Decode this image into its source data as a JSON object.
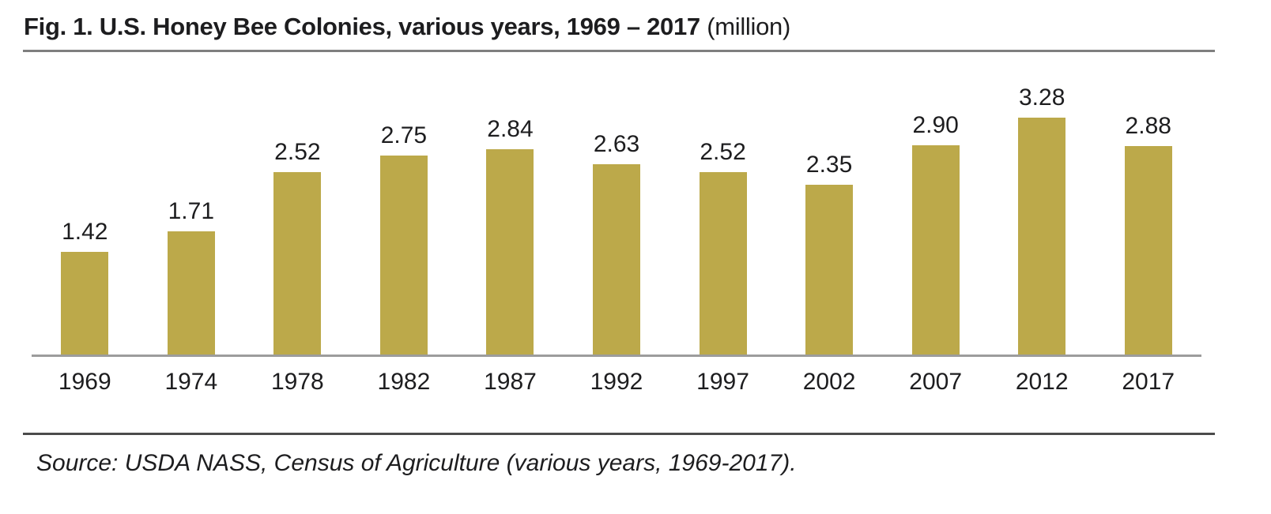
{
  "header": {
    "title_bold": "Fig. 1. U.S. Honey Bee Colonies, various years, 1969 – 2017",
    "title_unit": "(million)"
  },
  "chart_data": {
    "type": "bar",
    "title": "Fig. 1. U.S. Honey Bee Colonies, various years, 1969 – 2017 (million)",
    "categories": [
      "1969",
      "1974",
      "1978",
      "1982",
      "1987",
      "1992",
      "1997",
      "2002",
      "2007",
      "2012",
      "2017"
    ],
    "values": [
      1.42,
      1.71,
      2.52,
      2.75,
      2.84,
      2.63,
      2.52,
      2.35,
      2.9,
      3.28,
      2.88
    ],
    "value_labels": [
      "1.42",
      "1.71",
      "2.52",
      "2.75",
      "2.84",
      "2.63",
      "2.52",
      "2.35",
      "2.90",
      "3.28",
      "2.88"
    ],
    "unit": "million",
    "xlabel": "",
    "ylabel": "",
    "ylim": [
      0,
      3.5
    ],
    "grid": false,
    "legend": "none",
    "data_labels_position": "above bars",
    "bar_color": "#bca94a"
  },
  "footer": {
    "source": "Source: USDA NASS, Census of Agriculture (various years, 1969-2017)."
  },
  "colors": {
    "bar": "#bca94a",
    "axis_line": "#9c9c9c",
    "title_rule": "#7f7f7f",
    "footer_rule": "#4b4b4b",
    "text": "#1d1d1f"
  }
}
